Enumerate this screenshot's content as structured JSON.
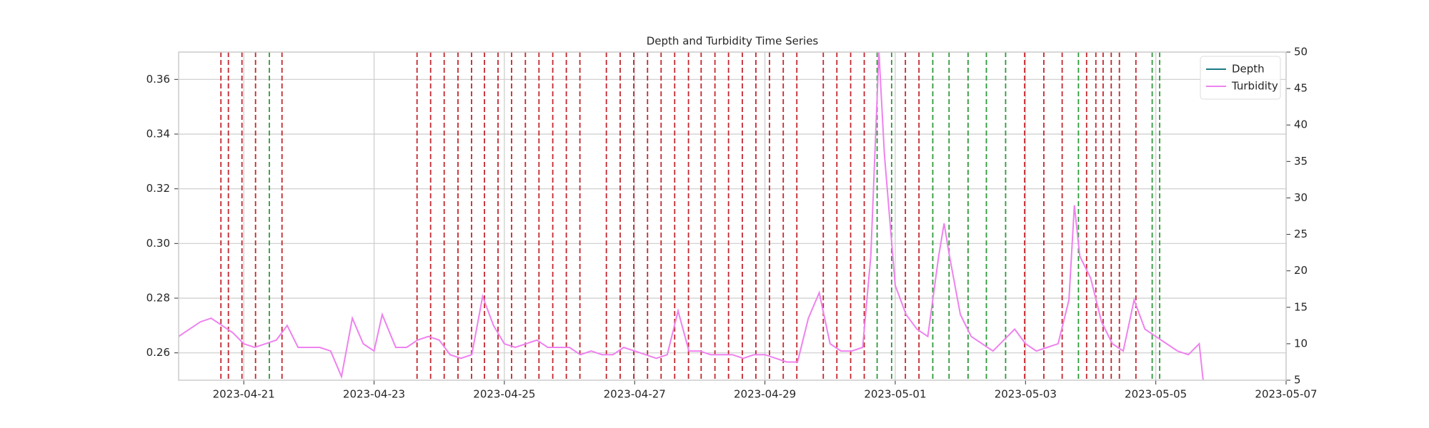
{
  "chart_data": {
    "type": "line",
    "title": "Depth and Turbidity Time Series",
    "x": [
      "2023-04-20 00:00",
      "2023-04-20 04:00",
      "2023-04-20 08:00",
      "2023-04-20 12:00",
      "2023-04-20 16:00",
      "2023-04-20 20:00",
      "2023-04-21 00:00",
      "2023-04-21 04:00",
      "2023-04-21 08:00",
      "2023-04-21 12:00",
      "2023-04-21 16:00",
      "2023-04-21 20:00",
      "2023-04-22 00:00",
      "2023-04-22 04:00",
      "2023-04-22 08:00",
      "2023-04-22 12:00",
      "2023-04-22 16:00",
      "2023-04-22 20:00",
      "2023-04-23 00:00",
      "2023-04-23 03:00",
      "2023-04-23 08:00",
      "2023-04-23 12:00",
      "2023-04-23 16:00",
      "2023-04-23 20:00",
      "2023-04-24 00:00",
      "2023-04-24 04:00",
      "2023-04-24 08:00",
      "2023-04-24 12:00",
      "2023-04-24 16:00",
      "2023-04-24 20:00",
      "2023-04-25 00:00",
      "2023-04-25 04:00",
      "2023-04-25 08:00",
      "2023-04-25 12:00",
      "2023-04-25 16:00",
      "2023-04-25 20:00",
      "2023-04-26 00:00",
      "2023-04-26 04:00",
      "2023-04-26 08:00",
      "2023-04-26 12:00",
      "2023-04-26 16:00",
      "2023-04-26 20:00",
      "2023-04-27 00:00",
      "2023-04-27 04:00",
      "2023-04-27 08:00",
      "2023-04-27 12:00",
      "2023-04-27 16:00",
      "2023-04-27 20:00",
      "2023-04-28 00:00",
      "2023-04-28 04:00",
      "2023-04-28 08:00",
      "2023-04-28 12:00",
      "2023-04-28 16:00",
      "2023-04-28 20:00",
      "2023-04-29 00:00",
      "2023-04-29 04:00",
      "2023-04-29 08:00",
      "2023-04-29 12:00",
      "2023-04-29 16:00",
      "2023-04-29 20:00",
      "2023-04-30 00:00",
      "2023-04-30 04:00",
      "2023-04-30 08:00",
      "2023-04-30 12:00",
      "2023-04-30 15:00",
      "2023-04-30 18:00",
      "2023-04-30 20:00",
      "2023-05-01 00:00",
      "2023-05-01 04:00",
      "2023-05-01 08:00",
      "2023-05-01 12:00",
      "2023-05-01 16:00",
      "2023-05-01 18:00",
      "2023-05-01 20:00",
      "2023-05-02 00:00",
      "2023-05-02 04:00",
      "2023-05-02 08:00",
      "2023-05-02 12:00",
      "2023-05-02 16:00",
      "2023-05-02 20:00",
      "2023-05-03 00:00",
      "2023-05-03 04:00",
      "2023-05-03 08:00",
      "2023-05-03 12:00",
      "2023-05-03 16:00",
      "2023-05-03 18:00",
      "2023-05-03 20:00",
      "2023-05-04 00:00",
      "2023-05-04 04:00",
      "2023-05-04 08:00",
      "2023-05-04 12:00",
      "2023-05-04 16:00",
      "2023-05-04 20:00",
      "2023-05-05 00:00",
      "2023-05-05 04:00",
      "2023-05-05 08:00",
      "2023-05-05 12:00",
      "2023-05-05 16:00",
      "2023-05-05 18:00"
    ],
    "series": [
      {
        "name": "Depth",
        "color": "#1b7a86",
        "axis": "y",
        "values": [
          null,
          null,
          null,
          null,
          null,
          null,
          null,
          null,
          null,
          null,
          null,
          null,
          null,
          null,
          null,
          null,
          null,
          null,
          null,
          null,
          null,
          null,
          null,
          null,
          null,
          null,
          null,
          null,
          null,
          null,
          null,
          null,
          null,
          null,
          null,
          null,
          null,
          null,
          null,
          null,
          null,
          null,
          null,
          null,
          null,
          null,
          null,
          null,
          null,
          null,
          null,
          null,
          null,
          null,
          null,
          null,
          null,
          null,
          null,
          null,
          null,
          null,
          null,
          null,
          null,
          null,
          null,
          null,
          null,
          null,
          null,
          null,
          null,
          null,
          null,
          null,
          null,
          null,
          null,
          null,
          null,
          null,
          null,
          null,
          null,
          null,
          null,
          null,
          null,
          null,
          null,
          null,
          null,
          null,
          null,
          null,
          null,
          null,
          null
        ]
      },
      {
        "name": "Turbidity",
        "color": "#ee82ee",
        "axis": "y2",
        "values": [
          11,
          12,
          13,
          13.5,
          12.5,
          11.5,
          10,
          9.5,
          10,
          10.5,
          12.5,
          9.5,
          9.5,
          9.5,
          9,
          5.5,
          13.5,
          10,
          9,
          14,
          9.5,
          9.5,
          10.5,
          11,
          10.5,
          8.5,
          8,
          8.5,
          16.5,
          12.5,
          10,
          9.5,
          10,
          10.5,
          9.5,
          9.5,
          9.5,
          8.5,
          9,
          8.5,
          8.5,
          9.5,
          9,
          8.5,
          8,
          8.5,
          14.5,
          9,
          9,
          8.5,
          8.5,
          8.5,
          8,
          8.5,
          8.5,
          8,
          7.5,
          7.5,
          13.5,
          17,
          10,
          9,
          9,
          9.5,
          22,
          50,
          36,
          18,
          14,
          12,
          11,
          22,
          26.5,
          22,
          14,
          11,
          10,
          9,
          10.5,
          12,
          10,
          9,
          9.5,
          10,
          16,
          29,
          22,
          19,
          13,
          10,
          9,
          16,
          12,
          11,
          10,
          9,
          8.5,
          10,
          3
        ]
      }
    ],
    "vlines": [
      {
        "x": "2023-04-20 15:35",
        "color": "#c4262e"
      },
      {
        "x": "2023-04-20 18:20",
        "color": "#c4262e"
      },
      {
        "x": "2023-04-20 23:20",
        "color": "#c4262e"
      },
      {
        "x": "2023-04-21 04:20",
        "color": "#c4262e"
      },
      {
        "x": "2023-04-21 09:25",
        "color": "#2e9a3a"
      },
      {
        "x": "2023-04-21 14:05",
        "color": "#c4262e"
      },
      {
        "x": "2023-04-23 15:50",
        "color": "#c4262e"
      },
      {
        "x": "2023-04-23 20:50",
        "color": "#c4262e"
      },
      {
        "x": "2023-04-24 01:50",
        "color": "#c4262e"
      },
      {
        "x": "2023-04-24 06:55",
        "color": "#c4262e"
      },
      {
        "x": "2023-04-24 11:55",
        "color": "#c4262e"
      },
      {
        "x": "2023-04-24 16:40",
        "color": "#c4262e"
      },
      {
        "x": "2023-04-24 21:40",
        "color": "#c4262e"
      },
      {
        "x": "2023-04-25 02:40",
        "color": "#c4262e"
      },
      {
        "x": "2023-04-25 07:45",
        "color": "#c4262e"
      },
      {
        "x": "2023-04-25 12:45",
        "color": "#c4262e"
      },
      {
        "x": "2023-04-25 17:50",
        "color": "#c4262e"
      },
      {
        "x": "2023-04-25 22:50",
        "color": "#c4262e"
      },
      {
        "x": "2023-04-26 03:50",
        "color": "#c4262e"
      },
      {
        "x": "2023-04-26 13:35",
        "color": "#c4262e"
      },
      {
        "x": "2023-04-26 18:40",
        "color": "#c4262e"
      },
      {
        "x": "2023-04-26 23:40",
        "color": "#c4262e"
      },
      {
        "x": "2023-04-27 04:45",
        "color": "#c4262e"
      },
      {
        "x": "2023-04-27 09:45",
        "color": "#c4262e"
      },
      {
        "x": "2023-04-27 14:45",
        "color": "#c4262e"
      },
      {
        "x": "2023-04-27 19:50",
        "color": "#c4262e"
      },
      {
        "x": "2023-04-28 00:30",
        "color": "#c4262e"
      },
      {
        "x": "2023-04-28 05:35",
        "color": "#c4262e"
      },
      {
        "x": "2023-04-28 10:35",
        "color": "#c4262e"
      },
      {
        "x": "2023-04-28 15:40",
        "color": "#c4262e"
      },
      {
        "x": "2023-04-28 20:40",
        "color": "#c4262e"
      },
      {
        "x": "2023-04-29 01:40",
        "color": "#c4262e"
      },
      {
        "x": "2023-04-29 06:45",
        "color": "#c4262e"
      },
      {
        "x": "2023-04-29 11:45",
        "color": "#c4262e"
      },
      {
        "x": "2023-04-29 21:30",
        "color": "#c4262e"
      },
      {
        "x": "2023-04-30 02:30",
        "color": "#c4262e"
      },
      {
        "x": "2023-04-30 07:35",
        "color": "#c4262e"
      },
      {
        "x": "2023-04-30 12:35",
        "color": "#c4262e"
      },
      {
        "x": "2023-04-30 17:20",
        "color": "#2e9a3a"
      },
      {
        "x": "2023-04-30 22:40",
        "color": "#2e9a3a"
      },
      {
        "x": "2023-05-01 03:45",
        "color": "#c4262e"
      },
      {
        "x": "2023-05-01 08:45",
        "color": "#c4262e"
      },
      {
        "x": "2023-05-01 13:50",
        "color": "#2e9a3a"
      },
      {
        "x": "2023-05-01 19:50",
        "color": "#2e9a3a"
      },
      {
        "x": "2023-05-02 02:50",
        "color": "#2e9a3a"
      },
      {
        "x": "2023-05-02 09:35",
        "color": "#2e9a3a"
      },
      {
        "x": "2023-05-02 16:40",
        "color": "#2e9a3a"
      },
      {
        "x": "2023-05-02 23:40",
        "color": "#c4262e"
      },
      {
        "x": "2023-05-03 06:45",
        "color": "#c4262e"
      },
      {
        "x": "2023-05-03 13:30",
        "color": "#c4262e"
      },
      {
        "x": "2023-05-03 19:30",
        "color": "#2e9a3a"
      },
      {
        "x": "2023-05-03 22:30",
        "color": "#c4262e"
      },
      {
        "x": "2023-05-04 01:55",
        "color": "#c4262e"
      },
      {
        "x": "2023-05-04 04:35",
        "color": "#c4262e"
      },
      {
        "x": "2023-05-04 07:35",
        "color": "#c4262e"
      },
      {
        "x": "2023-05-04 10:35",
        "color": "#c4262e"
      },
      {
        "x": "2023-05-04 16:40",
        "color": "#c4262e"
      },
      {
        "x": "2023-05-04 22:40",
        "color": "#2e9a3a"
      },
      {
        "x": "2023-05-05 01:25",
        "color": "#2e9a3a"
      }
    ],
    "xlim": [
      "2023-04-20",
      "2023-05-07"
    ],
    "xticks": [
      "2023-04-21",
      "2023-04-23",
      "2023-04-25",
      "2023-04-27",
      "2023-04-29",
      "2023-05-01",
      "2023-05-03",
      "2023-05-05",
      "2023-05-07"
    ],
    "ylim": [
      0.25,
      0.37
    ],
    "yticks": [
      0.26,
      0.28,
      {
        "value": 0.3,
        "label": "0.30"
      },
      0.32,
      0.34,
      0.36
    ],
    "y2lim": [
      5,
      50
    ],
    "y2ticks": [
      5,
      10,
      15,
      20,
      25,
      30,
      35,
      40,
      45,
      50
    ],
    "grid": true,
    "legend": "upper right"
  }
}
